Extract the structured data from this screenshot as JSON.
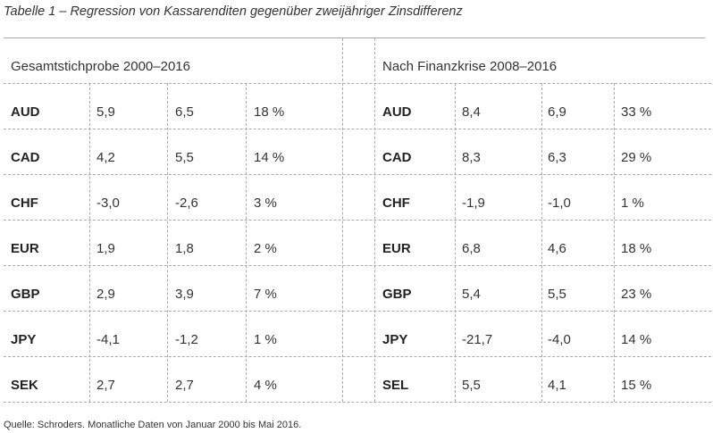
{
  "title": "Tabelle 1 – Regression von Kassarenditen gegenüber zweijähriger Zinsdifferenz",
  "left": {
    "header": "Gesamtstichprobe 2000–2016",
    "rows": [
      [
        "AUD",
        "5,9",
        "6,5",
        "18 %"
      ],
      [
        "CAD",
        "4,2",
        "5,5",
        "14 %"
      ],
      [
        "CHF",
        "-3,0",
        "-2,6",
        "3 %"
      ],
      [
        "EUR",
        "1,9",
        "1,8",
        "2 %"
      ],
      [
        "GBP",
        "2,9",
        "3,9",
        "7 %"
      ],
      [
        "JPY",
        "-4,1",
        "-1,2",
        "1 %"
      ],
      [
        "SEK",
        "2,7",
        "2,7",
        "4 %"
      ]
    ]
  },
  "right": {
    "header": "Nach Finanzkrise 2008–2016",
    "rows": [
      [
        "AUD",
        "8,4",
        "6,9",
        "33 %"
      ],
      [
        "CAD",
        "8,3",
        "6,3",
        "29 %"
      ],
      [
        "CHF",
        "-1,9",
        "-1,0",
        "1 %"
      ],
      [
        "EUR",
        "6,8",
        "4,6",
        "18 %"
      ],
      [
        "GBP",
        "5,4",
        "5,5",
        "23 %"
      ],
      [
        "JPY",
        "-21,7",
        "-4,0",
        "14 %"
      ],
      [
        "SEL",
        "5,5",
        "4,1",
        "15 %"
      ]
    ]
  },
  "source": "Quelle: Schroders. Monatliche Daten von Januar 2000 bis Mai 2016."
}
